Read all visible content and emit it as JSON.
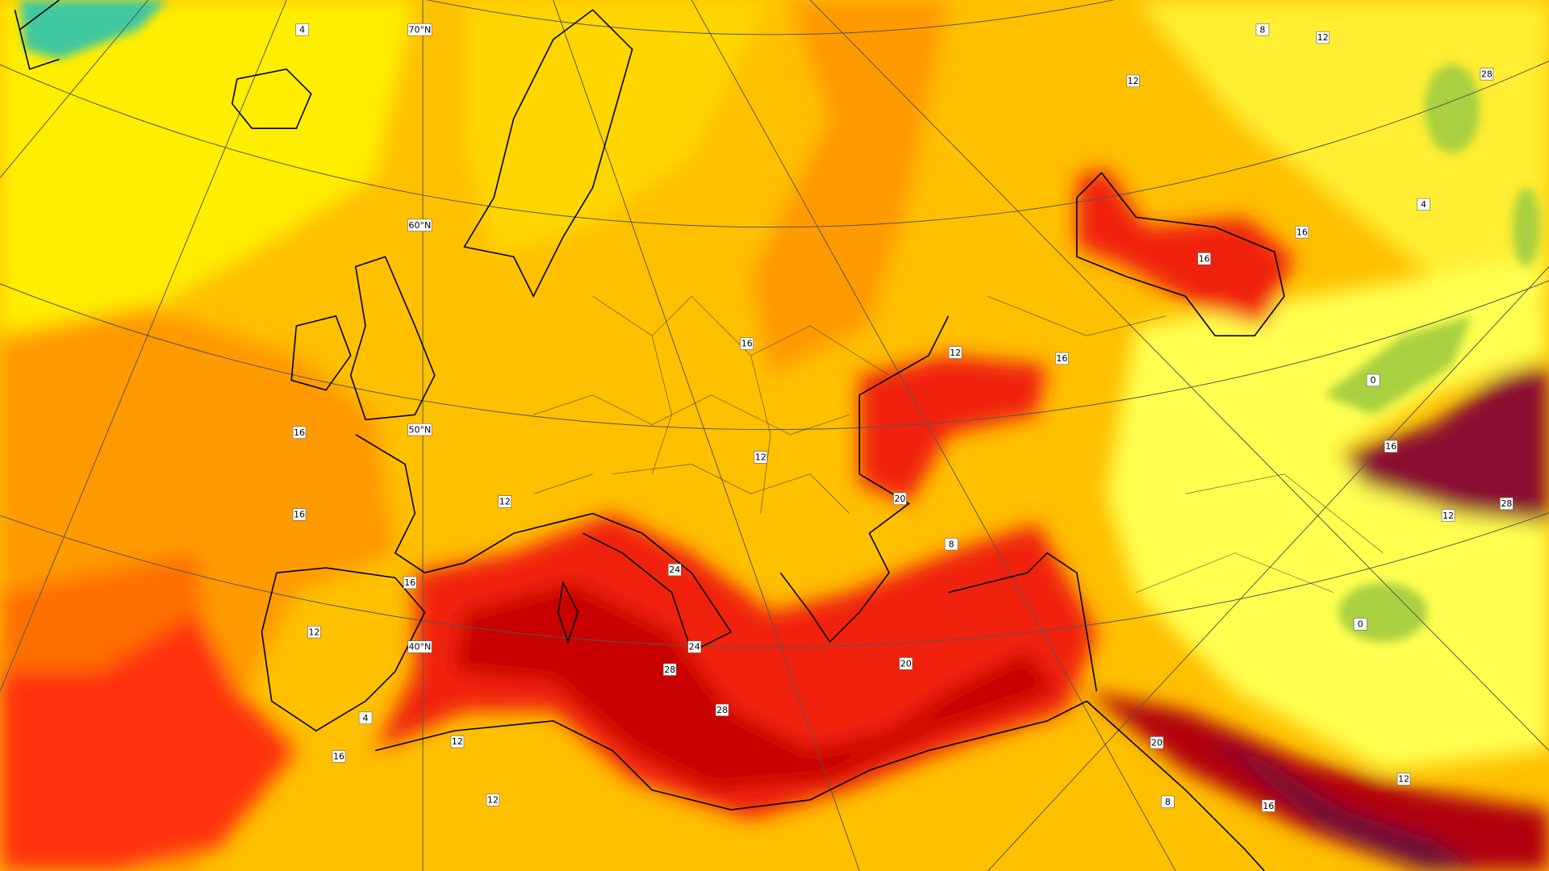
{
  "graticule_labels": [
    "70°N",
    "60°N",
    "50°N",
    "40°N"
  ],
  "contour_labels": [
    4,
    12,
    8,
    12,
    16,
    16,
    4,
    12,
    16,
    16,
    16,
    16,
    12,
    12,
    20,
    8,
    0,
    16,
    24,
    16,
    12,
    24,
    28,
    28,
    20,
    0,
    4,
    12,
    16,
    12,
    20,
    8,
    12,
    16,
    12,
    28,
    28
  ]
}
